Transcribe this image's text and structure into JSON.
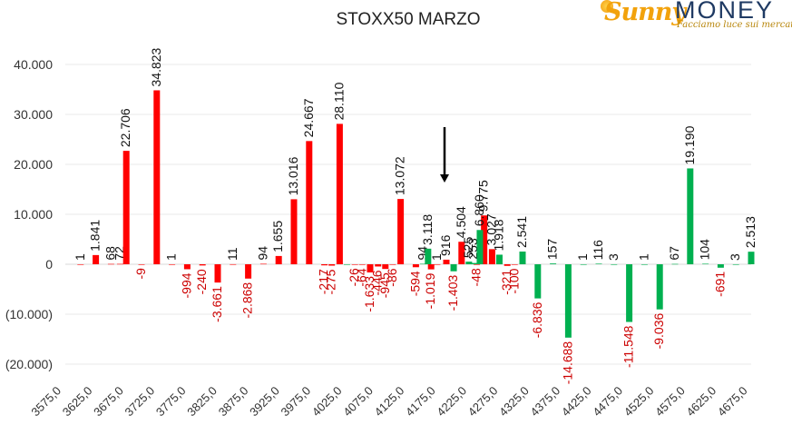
{
  "header": {
    "title": "STOXX50 MARZO"
  },
  "logo": {
    "brand_left": "Sunny",
    "brand_right": "MONEY",
    "tagline": "Facciamo luce sui mercati"
  },
  "colors": {
    "red": "#ff0000",
    "green": "#00b050",
    "tick_text": "#333333",
    "neg_label": "#cc0000",
    "grid": "#e8e8e8"
  },
  "chart_data": {
    "type": "bar",
    "title": "STOXX50 MARZO",
    "xlabel": "",
    "ylabel": "",
    "ylim": [
      -20000,
      40000
    ],
    "y_ticks": [
      40000,
      30000,
      20000,
      10000,
      0,
      -10000,
      -20000
    ],
    "y_tick_labels": [
      "40.000",
      "30.000",
      "20.000",
      "10.000",
      "0",
      "(10.000)",
      "(20.000)"
    ],
    "x_tick_labels": [
      "3575,0",
      "3625,0",
      "3675,0",
      "3725,0",
      "3775,0",
      "3825,0",
      "3875,0",
      "3925,0",
      "3975,0",
      "4025,0",
      "4075,0",
      "4125,0",
      "4175,0",
      "4225,0",
      "4275,0",
      "4325,0",
      "4375,0",
      "4425,0",
      "4475,0",
      "4525,0",
      "4575,0",
      "4625,0",
      "4675,0"
    ],
    "annotation": {
      "type": "arrow-down",
      "x": 4200
    },
    "series": [
      {
        "color": "red",
        "points": [
          {
            "x": 3600,
            "v": 1,
            "label": "1"
          },
          {
            "x": 3625,
            "v": 1841,
            "label": "1.841"
          },
          {
            "x": 3650,
            "v": 68,
            "label": "68"
          },
          {
            "x": 3665,
            "v": 72,
            "label": "72"
          },
          {
            "x": 3675,
            "v": 22706,
            "label": "22.706"
          },
          {
            "x": 3700,
            "v": -9,
            "label": "-9"
          },
          {
            "x": 3725,
            "v": 34823,
            "label": "34.823"
          },
          {
            "x": 3750,
            "v": 1,
            "label": "1"
          },
          {
            "x": 3775,
            "v": -994,
            "label": "-994"
          },
          {
            "x": 3800,
            "v": -240,
            "label": "-240"
          },
          {
            "x": 3825,
            "v": -3661,
            "label": "-3.661"
          },
          {
            "x": 3850,
            "v": 11,
            "label": "11"
          },
          {
            "x": 3875,
            "v": -2868,
            "label": "-2.868"
          },
          {
            "x": 3900,
            "v": 94,
            "label": "94"
          },
          {
            "x": 3925,
            "v": 1655,
            "label": "1.655"
          },
          {
            "x": 3950,
            "v": 13016,
            "label": "13.016"
          },
          {
            "x": 3975,
            "v": 24667,
            "label": "24.667"
          },
          {
            "x": 4000,
            "v": -217,
            "label": "-217"
          },
          {
            "x": 4012,
            "v": -275,
            "label": "-275"
          },
          {
            "x": 4025,
            "v": 28110,
            "label": "28.110"
          },
          {
            "x": 4050,
            "v": -26,
            "label": "-26"
          },
          {
            "x": 4062,
            "v": -64,
            "label": "-64"
          },
          {
            "x": 4075,
            "v": -1633,
            "label": "-1.633"
          },
          {
            "x": 4088,
            "v": -446,
            "label": "-446"
          },
          {
            "x": 4100,
            "v": -945,
            "label": "-945"
          },
          {
            "x": 4112,
            "v": -86,
            "label": "-86"
          },
          {
            "x": 4125,
            "v": 13072,
            "label": "13.072"
          },
          {
            "x": 4150,
            "v": -594,
            "label": "-594"
          },
          {
            "x": 4175,
            "v": -1019,
            "label": "-1.019"
          },
          {
            "x": 4185,
            "v": 1,
            "label": "1"
          },
          {
            "x": 4200,
            "v": 916,
            "label": "916"
          },
          {
            "x": 4225,
            "v": 4504,
            "label": "4.504"
          },
          {
            "x": 4250,
            "v": -48,
            "label": "-48"
          },
          {
            "x": 4262,
            "v": 9775,
            "label": "9.775"
          },
          {
            "x": 4275,
            "v": 3027,
            "label": "3.027"
          },
          {
            "x": 4300,
            "v": -321,
            "label": "-321"
          },
          {
            "x": 4312,
            "v": -100,
            "label": "-100"
          }
        ]
      },
      {
        "color": "green",
        "points": [
          {
            "x": 4037,
            "v": -100,
            "label": ""
          },
          {
            "x": 4162,
            "v": 94,
            "label": "94"
          },
          {
            "x": 4170,
            "v": 3118,
            "label": "3.118"
          },
          {
            "x": 4212,
            "v": -1403,
            "label": "-1.403"
          },
          {
            "x": 4237,
            "v": 525,
            "label": "525"
          },
          {
            "x": 4245,
            "v": 253,
            "label": "253"
          },
          {
            "x": 4255,
            "v": 6860,
            "label": "6.860"
          },
          {
            "x": 4287,
            "v": 1918,
            "label": "1.918"
          },
          {
            "x": 4325,
            "v": 2541,
            "label": "2.541"
          },
          {
            "x": 4350,
            "v": -6836,
            "label": "-6.836"
          },
          {
            "x": 4375,
            "v": 157,
            "label": "157"
          },
          {
            "x": 4400,
            "v": -14688,
            "label": "-14.688"
          },
          {
            "x": 4425,
            "v": 1,
            "label": "1"
          },
          {
            "x": 4450,
            "v": 116,
            "label": "116"
          },
          {
            "x": 4475,
            "v": 3,
            "label": "3"
          },
          {
            "x": 4500,
            "v": -11548,
            "label": "-11.548"
          },
          {
            "x": 4525,
            "v": 1,
            "label": "1"
          },
          {
            "x": 4550,
            "v": -9036,
            "label": "-9.036"
          },
          {
            "x": 4575,
            "v": 67,
            "label": "67"
          },
          {
            "x": 4600,
            "v": 19190,
            "label": "19.190"
          },
          {
            "x": 4625,
            "v": 104,
            "label": "104"
          },
          {
            "x": 4650,
            "v": -691,
            "label": "-691"
          },
          {
            "x": 4675,
            "v": 3,
            "label": "3"
          },
          {
            "x": 4700,
            "v": 2513,
            "label": "2.513"
          }
        ]
      }
    ]
  }
}
